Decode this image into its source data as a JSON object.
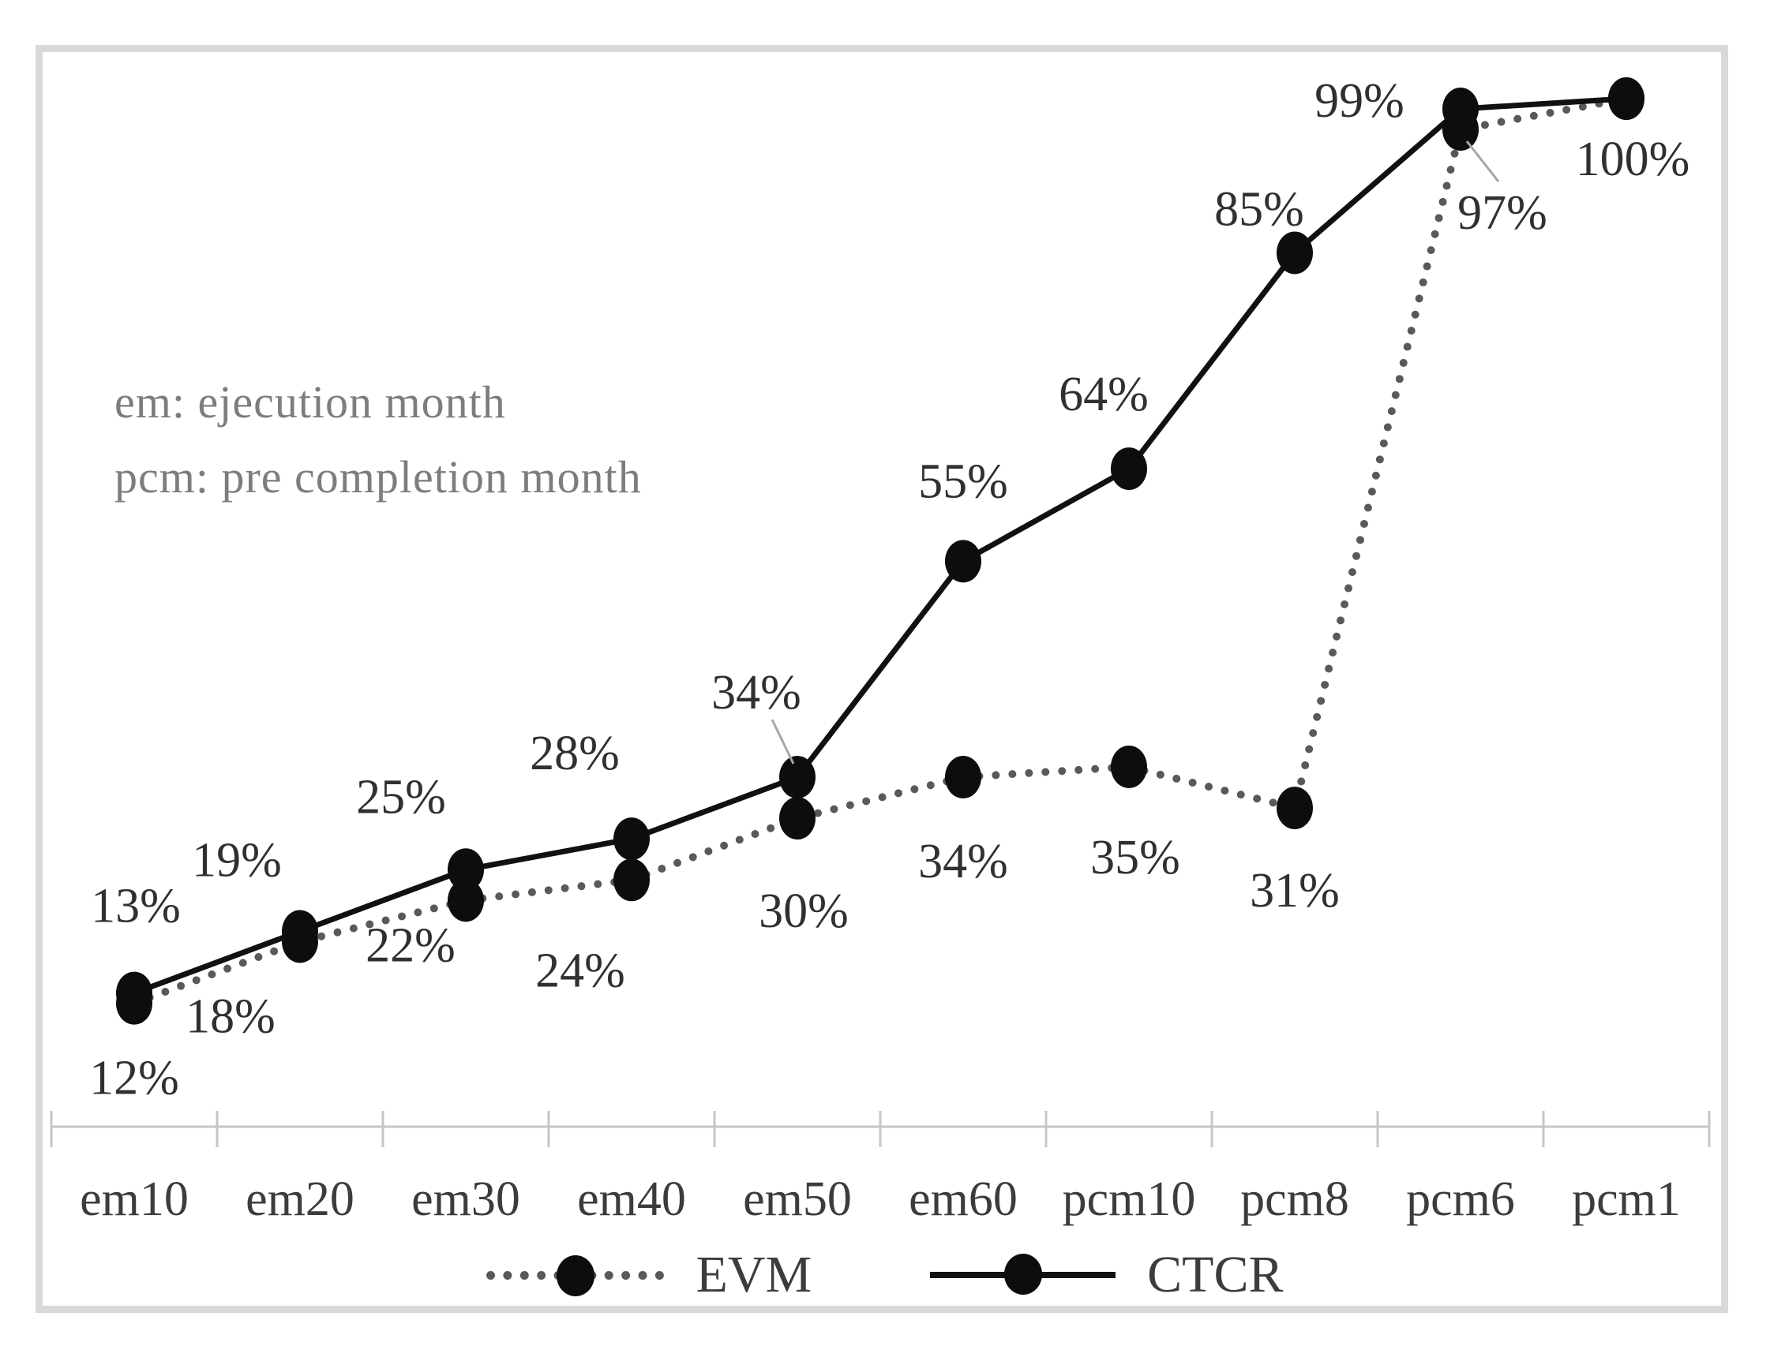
{
  "figure": {
    "frame_color": "#d9d9d9",
    "background": "#ffffff"
  },
  "chart_data": {
    "type": "line",
    "categories": [
      "em10",
      "em20",
      "em30",
      "em40",
      "em50",
      "em60",
      "pcm10",
      "pcm8",
      "pcm6",
      "pcm1"
    ],
    "series": [
      {
        "name": "EVM",
        "line_style": "dotted",
        "color": "#595959",
        "values": [
          12,
          18,
          22,
          24,
          30,
          34,
          35,
          31,
          97,
          100
        ],
        "data_labels": [
          "12%",
          "18%",
          "22%",
          "24%",
          "30%",
          "34%",
          "35%",
          "31%",
          "97%",
          null
        ]
      },
      {
        "name": "CTCR",
        "line_style": "solid",
        "color": "#111111",
        "values": [
          13,
          19,
          25,
          28,
          34,
          55,
          64,
          85,
          99,
          100
        ],
        "data_labels": [
          "13%",
          "19%",
          "25%",
          "28%",
          "34%",
          "55%",
          "64%",
          "85%",
          "99%",
          "100%"
        ]
      }
    ],
    "marker_color": "#0d0d0d",
    "ylim": [
      0,
      105
    ],
    "grid": "off",
    "legend_position": "bottom",
    "annotation": {
      "line1": "em: ejecution month",
      "line2": "pcm: pre completion month"
    },
    "colors": {
      "axis": "#c6c6c6",
      "axis_label": "#3c3c3c",
      "data_label": "#303030",
      "annotation": "#7d7d7d",
      "leader": "#a6a6a6",
      "legend_text": "#3c3c3c"
    }
  }
}
